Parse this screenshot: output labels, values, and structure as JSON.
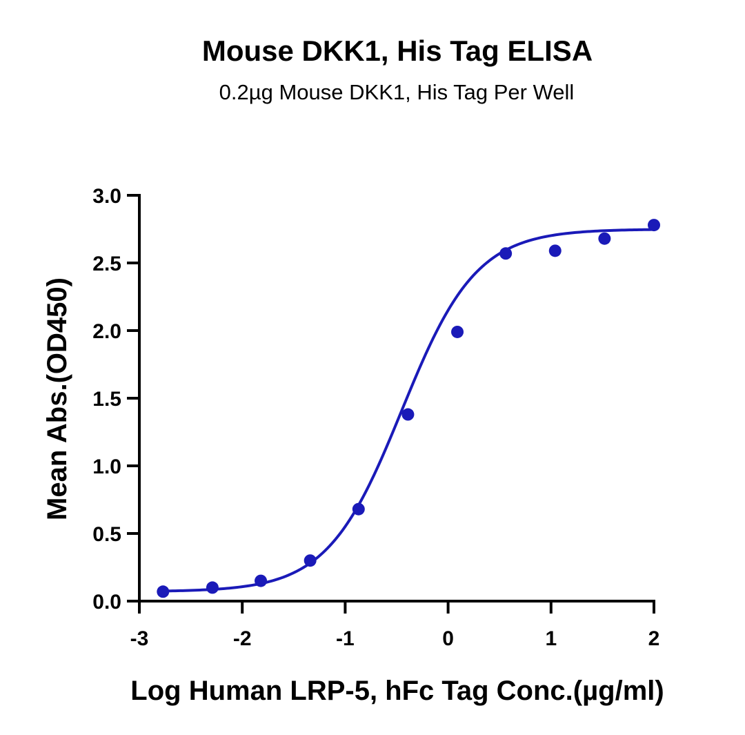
{
  "chart_data": {
    "type": "scatter",
    "title": "Mouse DKK1, His Tag ELISA",
    "subtitle": "0.2µg Mouse DKK1, His Tag Per Well",
    "xlabel": "Log Human LRP-5, hFc Tag Conc.(µg/ml)",
    "ylabel": "Mean Abs.(OD450)",
    "xlim": [
      -3,
      2
    ],
    "ylim": [
      0,
      3
    ],
    "x_ticks": [
      "-3",
      "-2",
      "-1",
      "0",
      "1",
      "2"
    ],
    "y_ticks": [
      "0.0",
      "0.5",
      "1.0",
      "1.5",
      "2.0",
      "2.5",
      "3.0"
    ],
    "grid": false,
    "color": "#1a1ab8",
    "series": [
      {
        "x": [
          -2.77,
          -2.29,
          -1.82,
          -1.34,
          -0.87,
          -0.39,
          0.09,
          0.56,
          1.04,
          1.52,
          2.0
        ],
        "y": [
          0.07,
          0.1,
          0.15,
          0.3,
          0.68,
          1.38,
          1.99,
          2.57,
          2.59,
          2.68,
          2.78
        ]
      }
    ],
    "fit": {
      "type": "4PL",
      "bottom": 0.07,
      "top": 2.75,
      "log_ec50": -0.45,
      "hill": 1.2
    }
  }
}
